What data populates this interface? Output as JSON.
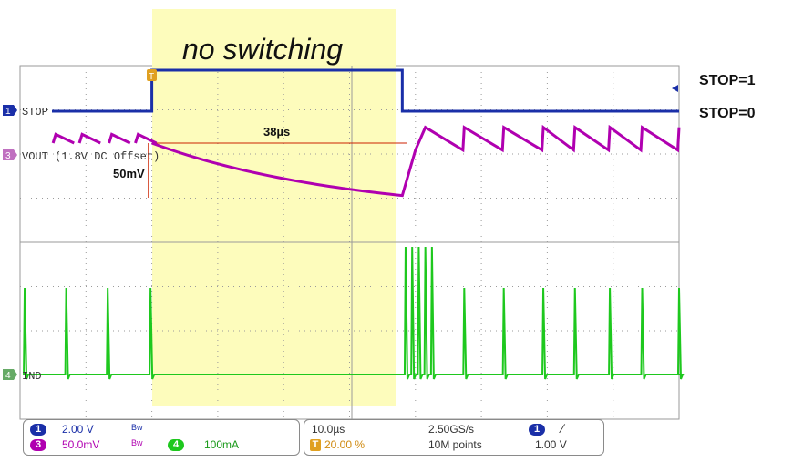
{
  "chart_data": {
    "type": "line",
    "title": "no switching",
    "right_labels": {
      "stop_high": "STOP=1",
      "stop_low": "STOP=0"
    },
    "channels": [
      {
        "id": "1",
        "name": "STOP",
        "color": "#1a2fa8"
      },
      {
        "id": "3",
        "name": "VOUT (1.8V DC Offset)",
        "color": "#b000b0"
      },
      {
        "id": "4",
        "name": "IND",
        "color": "#1ec81e"
      }
    ],
    "annotations": {
      "duration": "38µs",
      "amplitude": "50mV"
    },
    "x_range_us": [
      -20,
      80
    ],
    "stop_signal": {
      "high_from_us": 0,
      "high_to_us": 38
    },
    "vout_mV": {
      "pre_ripple_range": [
        0,
        10
      ],
      "start": 0,
      "end_at_38us": -60,
      "post_ripple_range": [
        -8,
        18
      ]
    },
    "ind_spike_times_us": [
      -19.3,
      -13,
      -6.7,
      -0.2,
      38.5,
      39.5,
      40.5,
      41.5,
      42.5,
      47.4,
      53.4,
      59.4,
      64.2,
      69.5,
      74.4,
      80
    ],
    "status_bar": {
      "ch1_scale": "2.00 V",
      "ch3_scale": "50.0mV",
      "ch4_scale": "100mA",
      "timebase": "10.0µs",
      "trigger_pos": "20.00 %",
      "sample_rate": "2.50GS/s",
      "record_length": "10M points",
      "trigger_level": "1.00 V",
      "trigger_ch": "1",
      "ch1_id": "1",
      "ch3_id": "3",
      "ch4_id": "4",
      "trigger_marker": "T"
    },
    "colors": {
      "highlight": "#fdfcb8",
      "cursor": "#cc2200",
      "grid": "#9a9a9a"
    }
  }
}
